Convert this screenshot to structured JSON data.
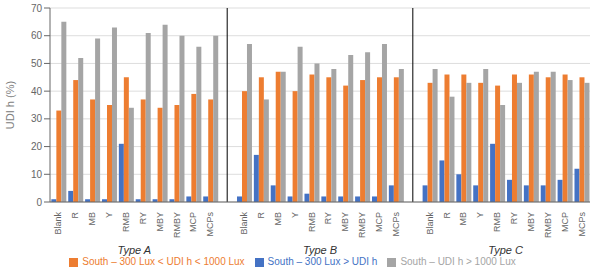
{
  "chart_data": {
    "type": "bar",
    "ylabel": "UDI h (%)",
    "categories": [
      "Blank",
      "R",
      "MB",
      "Y",
      "RMB",
      "RY",
      "MBY",
      "RMBY",
      "MCP",
      "MCPs",
      "Blank",
      "R",
      "MB",
      "Y",
      "RMB",
      "RY",
      "MBY",
      "RMBY",
      "MCP",
      "MCPs",
      "Blank",
      "R",
      "MB",
      "Y",
      "RMB",
      "RY",
      "MBY",
      "RMBY",
      "MCP",
      "MCPs"
    ],
    "group_labels": [
      "Type A",
      "Type B",
      "Type C"
    ],
    "series": [
      {
        "name": "South – 300 Lux > UDI h",
        "color": "#4472c4",
        "values": [
          1,
          4,
          1,
          1,
          21,
          1,
          1,
          1,
          2,
          2,
          2,
          17,
          6,
          2,
          3,
          2,
          2,
          2,
          2,
          6,
          6,
          15,
          10,
          6,
          21,
          8,
          6,
          6,
          8,
          12
        ]
      },
      {
        "name": "South – 300 Lux < UDI h < 1000 Lux",
        "color": "#ed7d31",
        "values": [
          33,
          44,
          37,
          35,
          45,
          37,
          34,
          35,
          39,
          37,
          40,
          45,
          47,
          40,
          46,
          45,
          42,
          44,
          45,
          45,
          43,
          46,
          46,
          43,
          42,
          46,
          46,
          45,
          46,
          45
        ]
      },
      {
        "name": "South – UDI h > 1000 Lux",
        "color": "#a5a5a5",
        "values": [
          65,
          52,
          59,
          63,
          34,
          61,
          64,
          60,
          56,
          60,
          57,
          37,
          47,
          56,
          50,
          48,
          53,
          54,
          57,
          48,
          48,
          38,
          43,
          48,
          35,
          43,
          47,
          47,
          44,
          43
        ]
      }
    ],
    "ylim": [
      0,
      70
    ],
    "yticks": [
      0,
      10,
      20,
      30,
      40,
      50,
      60,
      70
    ],
    "grid": true,
    "legend": "bottom"
  }
}
